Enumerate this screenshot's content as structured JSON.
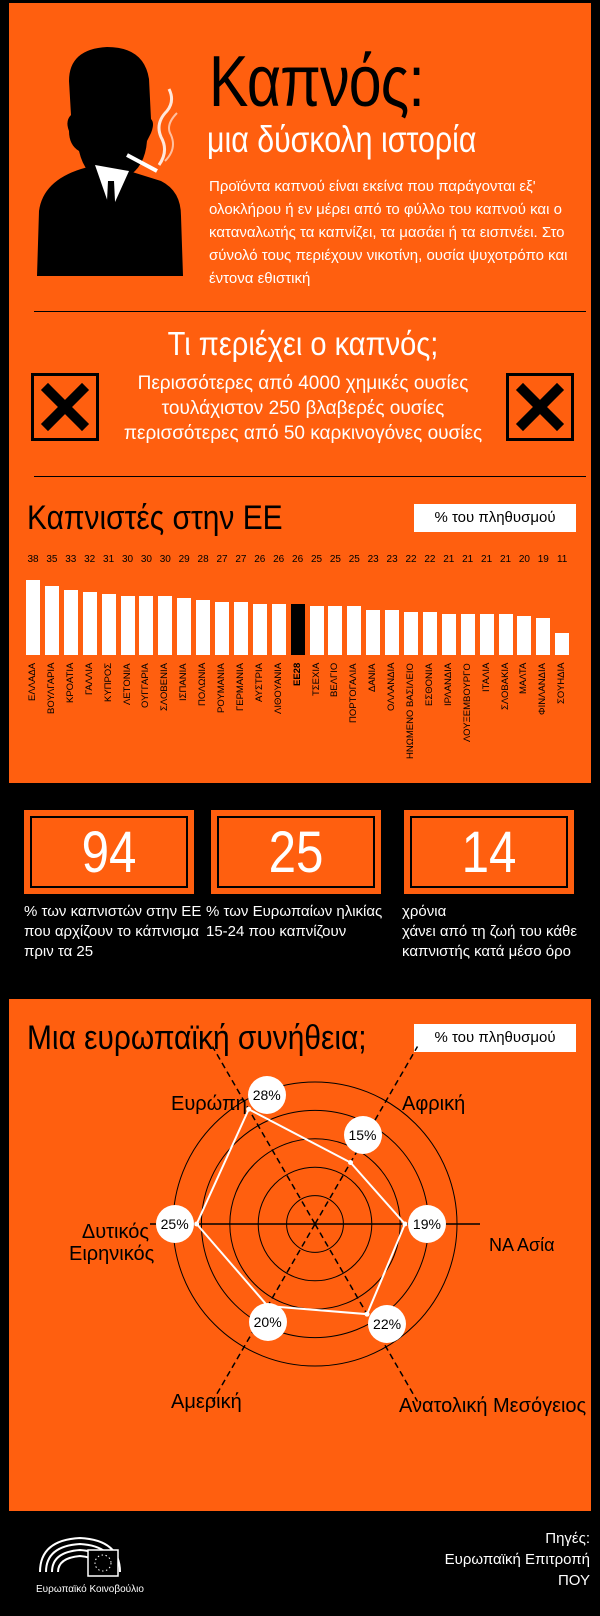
{
  "header": {
    "title": "Καπνός:",
    "subtitle": "μια δύσκολη ιστορία",
    "intro_lines": [
      "Προϊόντα καπνού είναι εκείνα που παράγονται εξ'",
      "ολοκλήρου ή εν μέρει από το φύλλο του καπνού και ο",
      "καταναλωτής τα καπνίζει, τα μασάει ή τα εισπνέει. Στο",
      "σύνολό τους περιέχουν νικοτίνη, ουσία ψυχοτρόπο και",
      "έντονα εθιστική"
    ]
  },
  "contains": {
    "title": "Τι περιέχει ο καπνός;",
    "lines": [
      "Περισσότερες από 4000 χημικές ουσίες",
      "τουλάχιστον 250 βλαβερές ουσίες",
      "περισσότερες από 50 καρκινογόνες ουσίες"
    ],
    "hazard_icon": "x-hazard-icon"
  },
  "chart_data": [
    {
      "type": "bar",
      "title": "Καπνιστές στην ΕΕ",
      "unit_tag": "% του πληθυσμού",
      "categories": [
        "ΕΛΛΑΔΑ",
        "ΒΟΥΛΓΑΡΙΑ",
        "ΚΡΟΑΤΙΑ",
        "ΓΑΛΛΙΑ",
        "ΚΥΠΡΟΣ",
        "ΛΕΤΟΝΙΑ",
        "ΟΥΓΓΑΡΙΑ",
        "ΣΛΟΒΕΝΙΑ",
        "ΙΣΠΑΝΙΑ",
        "ΠΟΛΩΝΙΑ",
        "ΡΟΥΜΑΝΙΑ",
        "ΓΕΡΜΑΝΙΑ",
        "ΑΥΣΤΡΙΑ",
        "ΛΙΘΟΥΑΝΙΑ",
        "ΕΕ28",
        "ΤΣΕΧΙΑ",
        "ΒΕΛΓΙΟ",
        "ΠΟΡΤΟΓΑΛΙΑ",
        "ΔΑΝΙΑ",
        "ΟΛΛΑΝΔΙΑ",
        "ΗΝΩΜΕΝΟ ΒΑΣΙΛΕΙΟ",
        "ΕΣΘΟΝΙΑ",
        "ΙΡΛΑΝΔΙΑ",
        "ΛΟΥΞΕΜΒΟΥΡΓΟ",
        "ΙΤΑΛΙΑ",
        "ΣΛΟΒΑΚΙΑ",
        "ΜΑΛΤΑ",
        "ΦΙΝΛΑΝΔΙΑ",
        "ΣΟΥΗΔΙΑ"
      ],
      "values": [
        38,
        35,
        33,
        32,
        31,
        30,
        30,
        30,
        29,
        28,
        27,
        27,
        26,
        26,
        26,
        25,
        25,
        25,
        23,
        23,
        22,
        22,
        21,
        21,
        21,
        21,
        20,
        19,
        11
      ],
      "highlight": "ΕΕ28",
      "colors": {
        "bar": "#ffffff",
        "highlight": "#000000"
      }
    },
    {
      "type": "radar",
      "title": "Μια ευρωπαϊκή συνήθεια;",
      "unit_tag": "% του πληθυσμού",
      "categories": [
        "Ευρώπη",
        "Αφρική",
        "ΝΑ Ασία",
        "Ανατολική Μεσόγειος",
        "Αμερική",
        "Δυτικός Ειρηνικός"
      ],
      "values": [
        28,
        15,
        19,
        22,
        20,
        25
      ],
      "value_labels": [
        "28%",
        "15%",
        "19%",
        "22%",
        "20%",
        "25%"
      ]
    }
  ],
  "stats": [
    {
      "number": "94",
      "text_lines": [
        "% των καπνιστών στην ΕΕ",
        "που αρχίζουν το κάπνισμα",
        "πριν τα 25"
      ]
    },
    {
      "number": "25",
      "text_lines": [
        "% των Ευρωπαίων ηλικίας",
        "15-24 που καπνίζουν"
      ]
    },
    {
      "number": "14",
      "text_lines": [
        "χρόνια",
        "χάνει από τη ζωή του κάθε",
        "καπνιστής κατά μέσο όρο"
      ]
    }
  ],
  "footer": {
    "logo_text": "Ευρωπαϊκό Κοινοβούλιο",
    "sources_lines": [
      "Πηγές:",
      "Ευρωπαϊκή Επιτροπή",
      "ΠΟΥ"
    ]
  },
  "colors": {
    "accent": "#ff5f0f",
    "dark": "#000000",
    "light": "#ffffff"
  }
}
